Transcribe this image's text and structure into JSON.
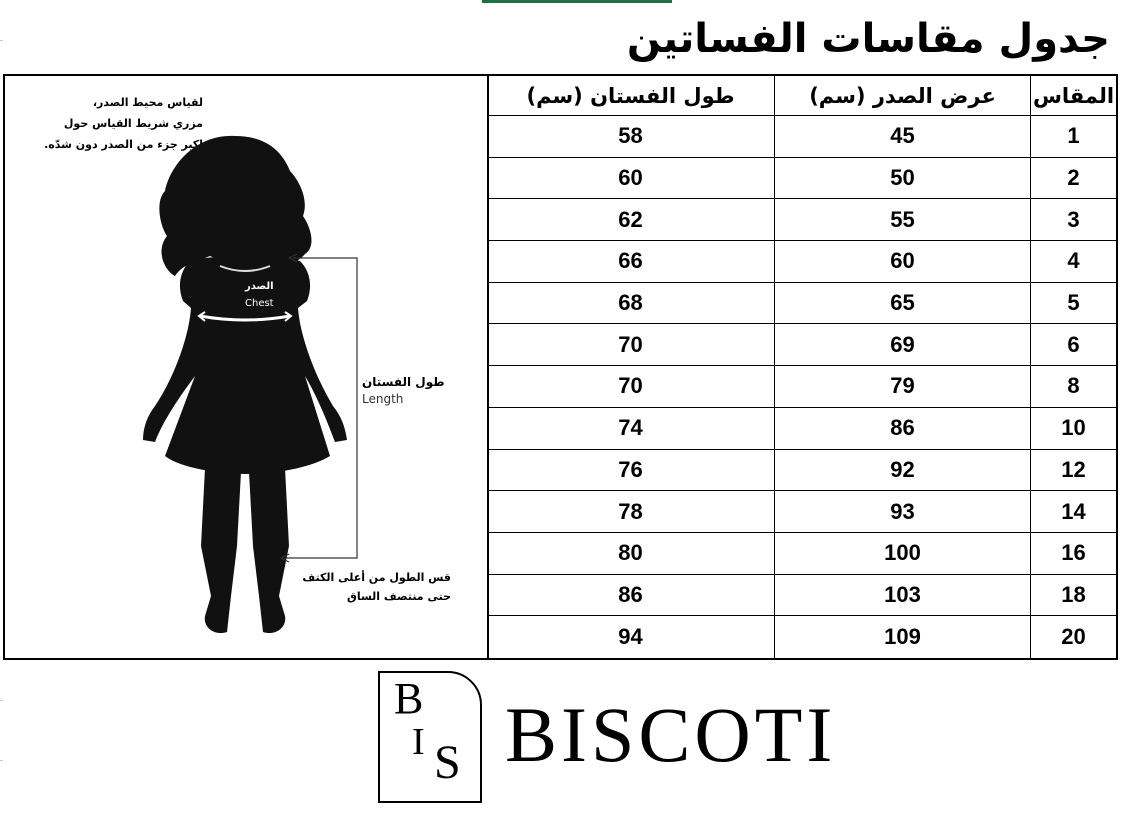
{
  "title": "جدول مقاسات الفساتين",
  "table": {
    "headers": {
      "length": "طول الفستان (سم)",
      "chest": "عرض الصدر (سم)",
      "size": "المقاس"
    },
    "rows": [
      {
        "size": "1",
        "chest": "45",
        "length": "58"
      },
      {
        "size": "2",
        "chest": "50",
        "length": "60"
      },
      {
        "size": "3",
        "chest": "55",
        "length": "62"
      },
      {
        "size": "4",
        "chest": "60",
        "length": "66"
      },
      {
        "size": "5",
        "chest": "65",
        "length": "68"
      },
      {
        "size": "6",
        "chest": "69",
        "length": "70"
      },
      {
        "size": "8",
        "chest": "79",
        "length": "70"
      },
      {
        "size": "10",
        "chest": "86",
        "length": "74"
      },
      {
        "size": "12",
        "chest": "92",
        "length": "76"
      },
      {
        "size": "14",
        "chest": "93",
        "length": "78"
      },
      {
        "size": "16",
        "chest": "100",
        "length": "80"
      },
      {
        "size": "18",
        "chest": "103",
        "length": "86"
      },
      {
        "size": "20",
        "chest": "109",
        "length": "94"
      }
    ]
  },
  "illustration": {
    "chest_note": [
      "لقياس محيط الصدر،",
      "مزري شريط القياس حول",
      "اكبر جزء من الصدر دون شدّه."
    ],
    "chest_label_ar": "الصدر",
    "chest_label_en": "Chest",
    "length_label_ar": "طول الفستان",
    "length_label_en": "Length",
    "length_note": [
      "قس الطول من أعلى الكتف",
      "حتى منتصف الساق"
    ]
  },
  "logo": {
    "monogram": "BIS",
    "brand": "BISCOTI"
  },
  "colors": {
    "selection": "#1e7145"
  }
}
